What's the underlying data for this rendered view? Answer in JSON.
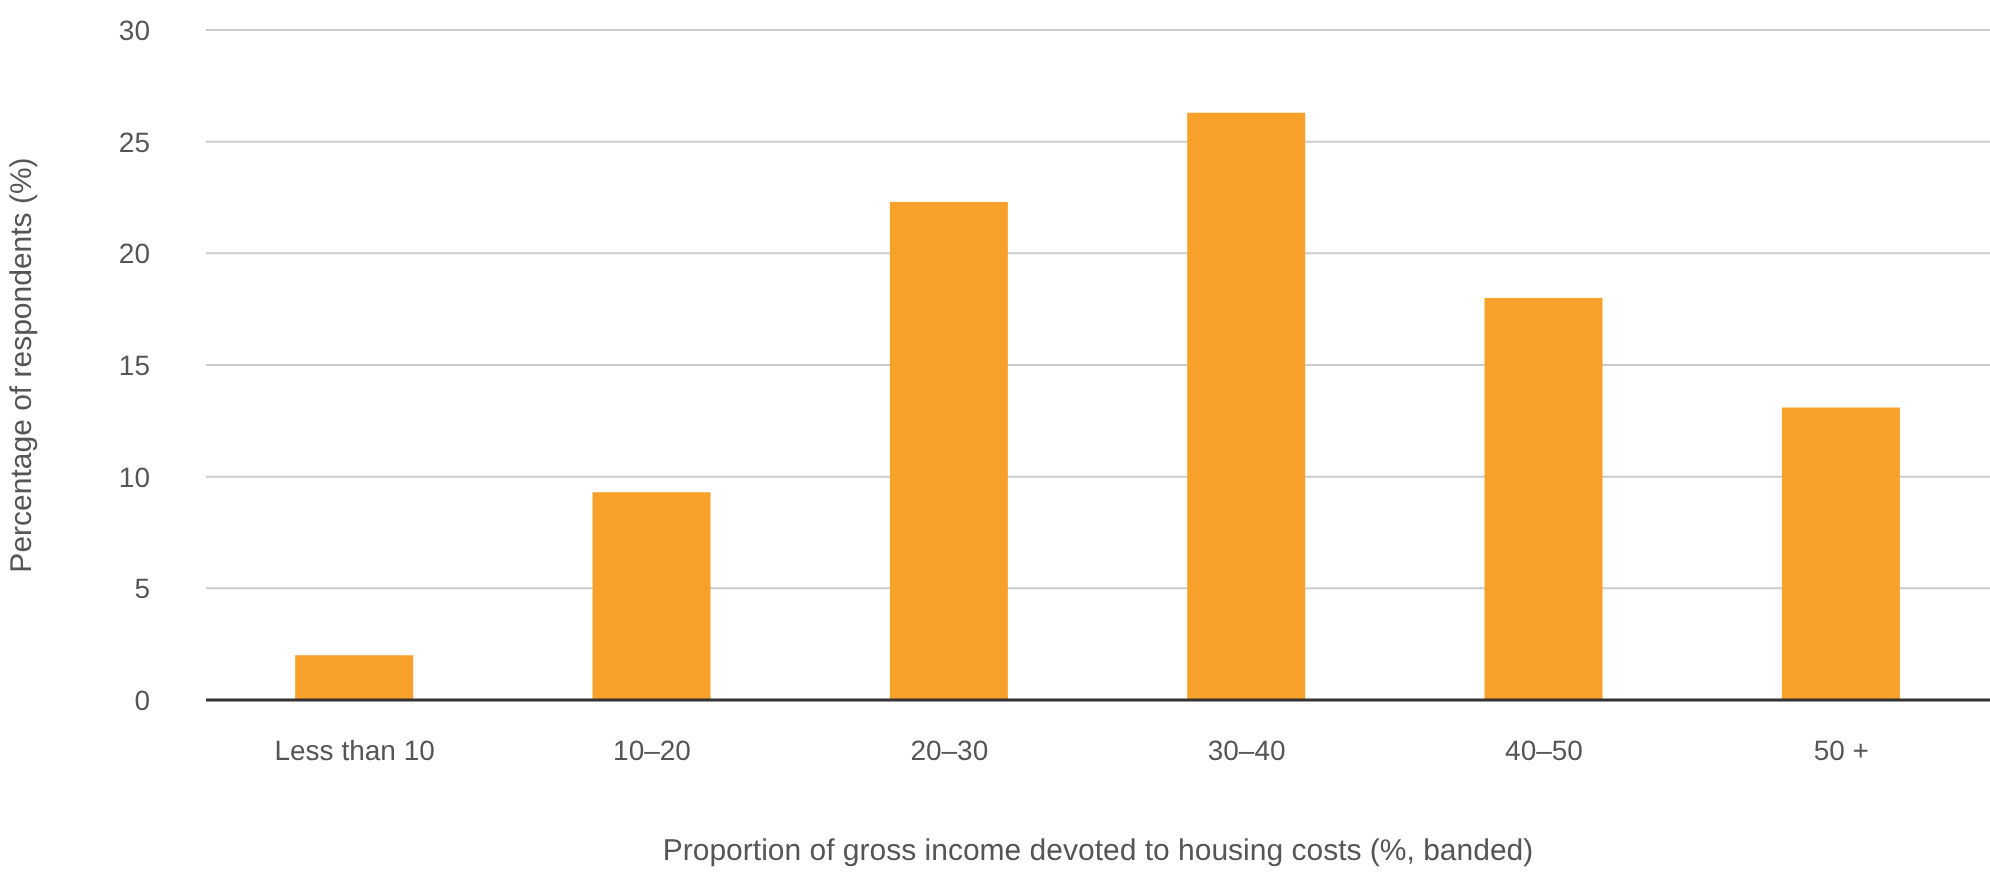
{
  "chart_data": {
    "type": "bar",
    "xlabel": "Proportion of gross income devoted to housing costs (%, banded)",
    "ylabel": "Percentage of respondents (%)",
    "categories": [
      "Less than 10",
      "10–20",
      "20–30",
      "30–40",
      "40–50",
      "50 +"
    ],
    "values": [
      2.0,
      9.3,
      22.3,
      26.3,
      18.0,
      13.1
    ],
    "color": "#f7a12a",
    "ylim": [
      0,
      30
    ],
    "yticks": [
      0,
      5,
      10,
      15,
      20,
      25,
      30
    ],
    "grid": "y"
  }
}
